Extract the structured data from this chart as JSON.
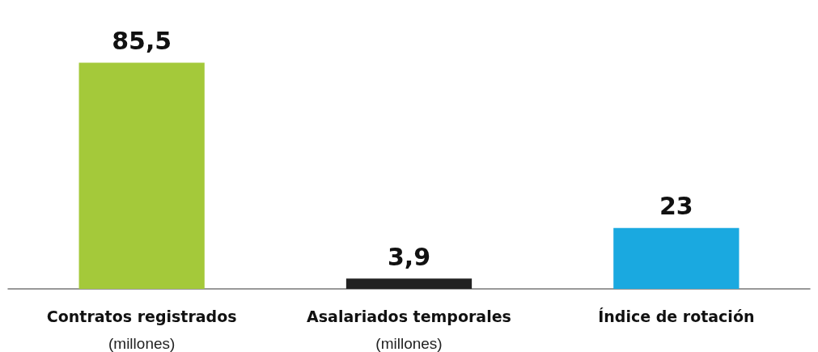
{
  "chart_data": {
    "type": "bar",
    "categories": [
      "Contratos registrados\n(millones)",
      "Asalariados temporales\n(millones)",
      "Índice de rotación"
    ],
    "values": [
      85.5,
      3.9,
      23
    ],
    "colors": [
      "#a4c93a",
      "#222222",
      "#1aa9e0"
    ],
    "value_labels": [
      "85,5",
      "3,9",
      "23"
    ]
  }
}
